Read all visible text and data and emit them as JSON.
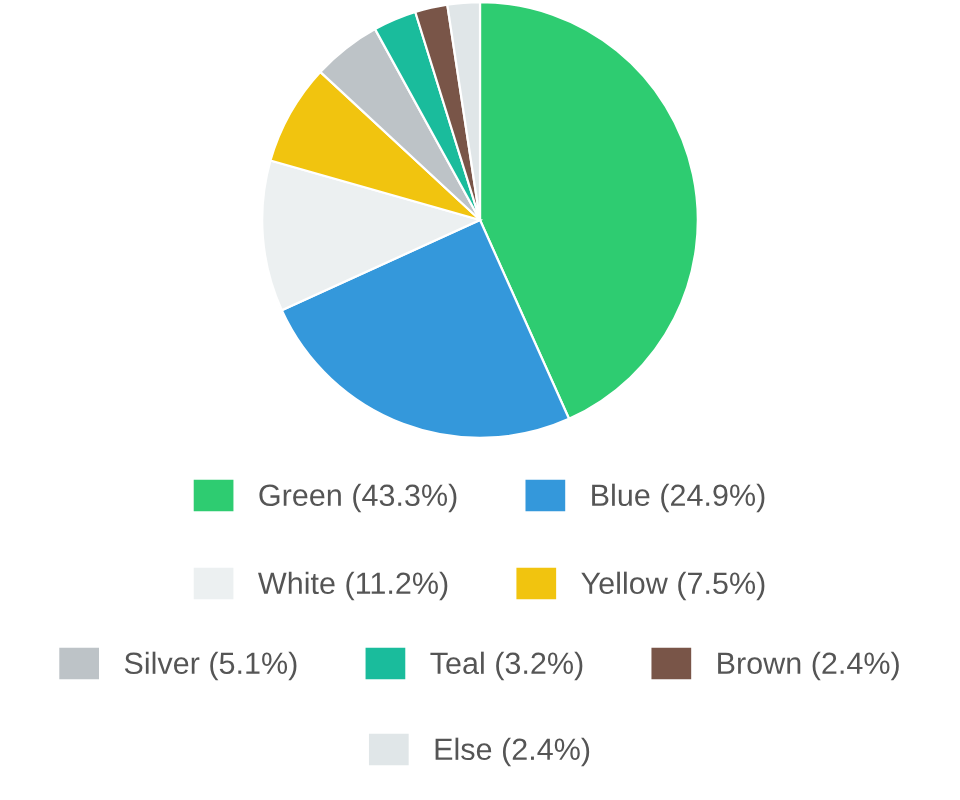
{
  "chart_data": {
    "type": "pie",
    "categories": [
      "Green (43.3%)",
      "Blue (24.9%)",
      "White (11.2%)",
      "Yellow (7.5%)",
      "Silver (5.1%)",
      "Teal (3.2%)",
      "Brown (2.4%)",
      "Else (2.4%)"
    ],
    "values": [
      43.3,
      24.9,
      11.2,
      7.5,
      5.1,
      3.2,
      2.4,
      2.4
    ],
    "colors": [
      "#2ecc71",
      "#3498db",
      "#ecf0f1",
      "#f1c40f",
      "#bdc3c7",
      "#1abc9c",
      "#795548",
      "#e0e6e8"
    ],
    "legend": "bottom"
  }
}
